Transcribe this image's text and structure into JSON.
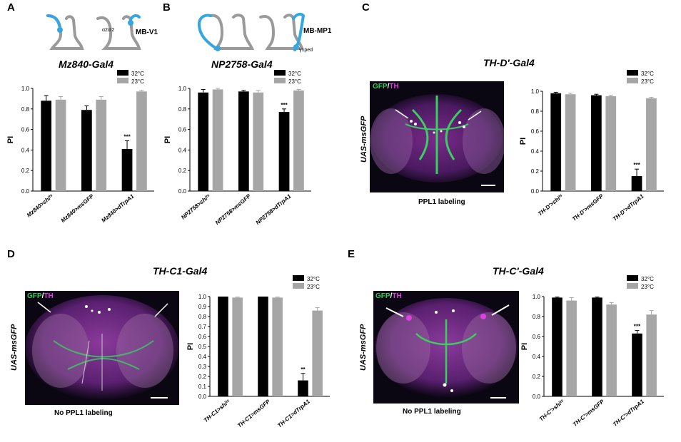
{
  "panels": {
    "A": {
      "letter": "A",
      "title": "Mz840-Gal4",
      "schematic_label": "MB-V1",
      "schematic_sublabel": "α2α'2"
    },
    "B": {
      "letter": "B",
      "title": "NP2758-Gal4",
      "schematic_label": "MB-MP1",
      "schematic_sublabel": "γ1ped"
    },
    "C": {
      "letter": "C",
      "title": "TH-D'-Gal4",
      "ylabel_image": "UAS-msGFP",
      "caption": "PPL1 labeling",
      "stain_gfp": "GFP",
      "stain_sep": "/",
      "stain_th": "TH"
    },
    "D": {
      "letter": "D",
      "title": "TH-C1-Gal4",
      "ylabel_image": "UAS-msGFP",
      "caption": "No PPL1 labeling",
      "stain_gfp": "GFP",
      "stain_sep": "/",
      "stain_th": "TH"
    },
    "E": {
      "letter": "E",
      "title": "TH-C'-Gal4",
      "ylabel_image": "UAS-msGFP",
      "caption": "No PPL1 labeling",
      "stain_gfp": "GFP",
      "stain_sep": "/",
      "stain_th": "TH"
    }
  },
  "colors": {
    "c32": "#000000",
    "c23": "#a6a6a6"
  },
  "chart_data": [
    {
      "id": "A",
      "type": "bar",
      "categories": [
        "Mz840>shiᵗˢ",
        "Mz840>msGFP",
        "Mz840>dTrpA1"
      ],
      "series": [
        {
          "name": "32°C",
          "values": [
            0.88,
            0.79,
            0.41
          ],
          "errors": [
            0.05,
            0.04,
            0.08
          ]
        },
        {
          "name": "23°C",
          "values": [
            0.89,
            0.89,
            0.97
          ],
          "errors": [
            0.03,
            0.03,
            0.01
          ]
        }
      ],
      "ylabel": "PI",
      "ylim": [
        0,
        1.0
      ],
      "yticks": [
        "0.0",
        "0.2",
        "0.4",
        "0.6",
        "0.8",
        "1.0"
      ],
      "significance": [
        {
          "category": 2,
          "series": 0,
          "text": "***"
        }
      ],
      "legend": "top-right"
    },
    {
      "id": "B",
      "type": "bar",
      "categories": [
        "NP2758>shiᵗˢ",
        "NP2758>msGFP",
        "NP2758>dTrpA1"
      ],
      "series": [
        {
          "name": "32°C",
          "values": [
            0.96,
            0.97,
            0.77
          ],
          "errors": [
            0.03,
            0.01,
            0.03
          ]
        },
        {
          "name": "23°C",
          "values": [
            0.99,
            0.96,
            0.98
          ],
          "errors": [
            0.01,
            0.02,
            0.01
          ]
        }
      ],
      "ylabel": "PI",
      "ylim": [
        0,
        1.0
      ],
      "yticks": [
        "0.0",
        "0.2",
        "0.4",
        "0.6",
        "0.8",
        "1.0"
      ],
      "significance": [
        {
          "category": 2,
          "series": 0,
          "text": "***"
        }
      ],
      "legend": "top-right"
    },
    {
      "id": "C",
      "type": "bar",
      "categories": [
        "TH-D'>shiᵗˢ",
        "TH-D'>msGFP",
        "TH-D'>dTrpA1"
      ],
      "series": [
        {
          "name": "32°C",
          "values": [
            0.98,
            0.96,
            0.15
          ],
          "errors": [
            0.01,
            0.01,
            0.07
          ]
        },
        {
          "name": "23°C",
          "values": [
            0.97,
            0.95,
            0.93
          ],
          "errors": [
            0.01,
            0.01,
            0.01
          ]
        }
      ],
      "ylabel": "PI",
      "ylim": [
        0,
        1.0
      ],
      "yticks": [
        "0.0",
        "0.2",
        "0.4",
        "0.6",
        "0.8",
        "1.0"
      ],
      "significance": [
        {
          "category": 2,
          "series": 0,
          "text": "***"
        }
      ],
      "legend": "top-right"
    },
    {
      "id": "D",
      "type": "bar",
      "categories": [
        "TH-C1>shiᵗˢ",
        "TH-C1>msGFP",
        "TH-C1>dTrpA1"
      ],
      "series": [
        {
          "name": "32°C",
          "values": [
            1.0,
            1.0,
            0.16
          ],
          "errors": [
            0.0,
            0.0,
            0.07
          ]
        },
        {
          "name": "23°C",
          "values": [
            0.99,
            0.99,
            0.86
          ],
          "errors": [
            0.005,
            0.005,
            0.03
          ]
        }
      ],
      "ylabel": "PI",
      "ylim": [
        0,
        1.0
      ],
      "yticks": [
        "0.0",
        "0.1",
        "0.2",
        "0.3",
        "0.4",
        "0.5",
        "0.6",
        "0.7",
        "0.8",
        "0.9",
        "1.0"
      ],
      "significance": [
        {
          "category": 2,
          "series": 0,
          "text": "**"
        }
      ],
      "legend": "top-right"
    },
    {
      "id": "E",
      "type": "bar",
      "categories": [
        "TH-C'>shiᵗˢ",
        "TH-C'>msGFP",
        "TH-C'>dTrpA1"
      ],
      "series": [
        {
          "name": "32°C",
          "values": [
            0.99,
            0.99,
            0.63
          ],
          "errors": [
            0.005,
            0.005,
            0.03
          ]
        },
        {
          "name": "23°C",
          "values": [
            0.96,
            0.92,
            0.82
          ],
          "errors": [
            0.03,
            0.02,
            0.04
          ]
        }
      ],
      "ylabel": "PI",
      "ylim": [
        0,
        1.0
      ],
      "yticks": [
        "0.0",
        "0.2",
        "0.4",
        "0.6",
        "0.8",
        "1.0"
      ],
      "significance": [
        {
          "category": 2,
          "series": 0,
          "text": "***"
        }
      ],
      "legend": "top-right"
    }
  ]
}
